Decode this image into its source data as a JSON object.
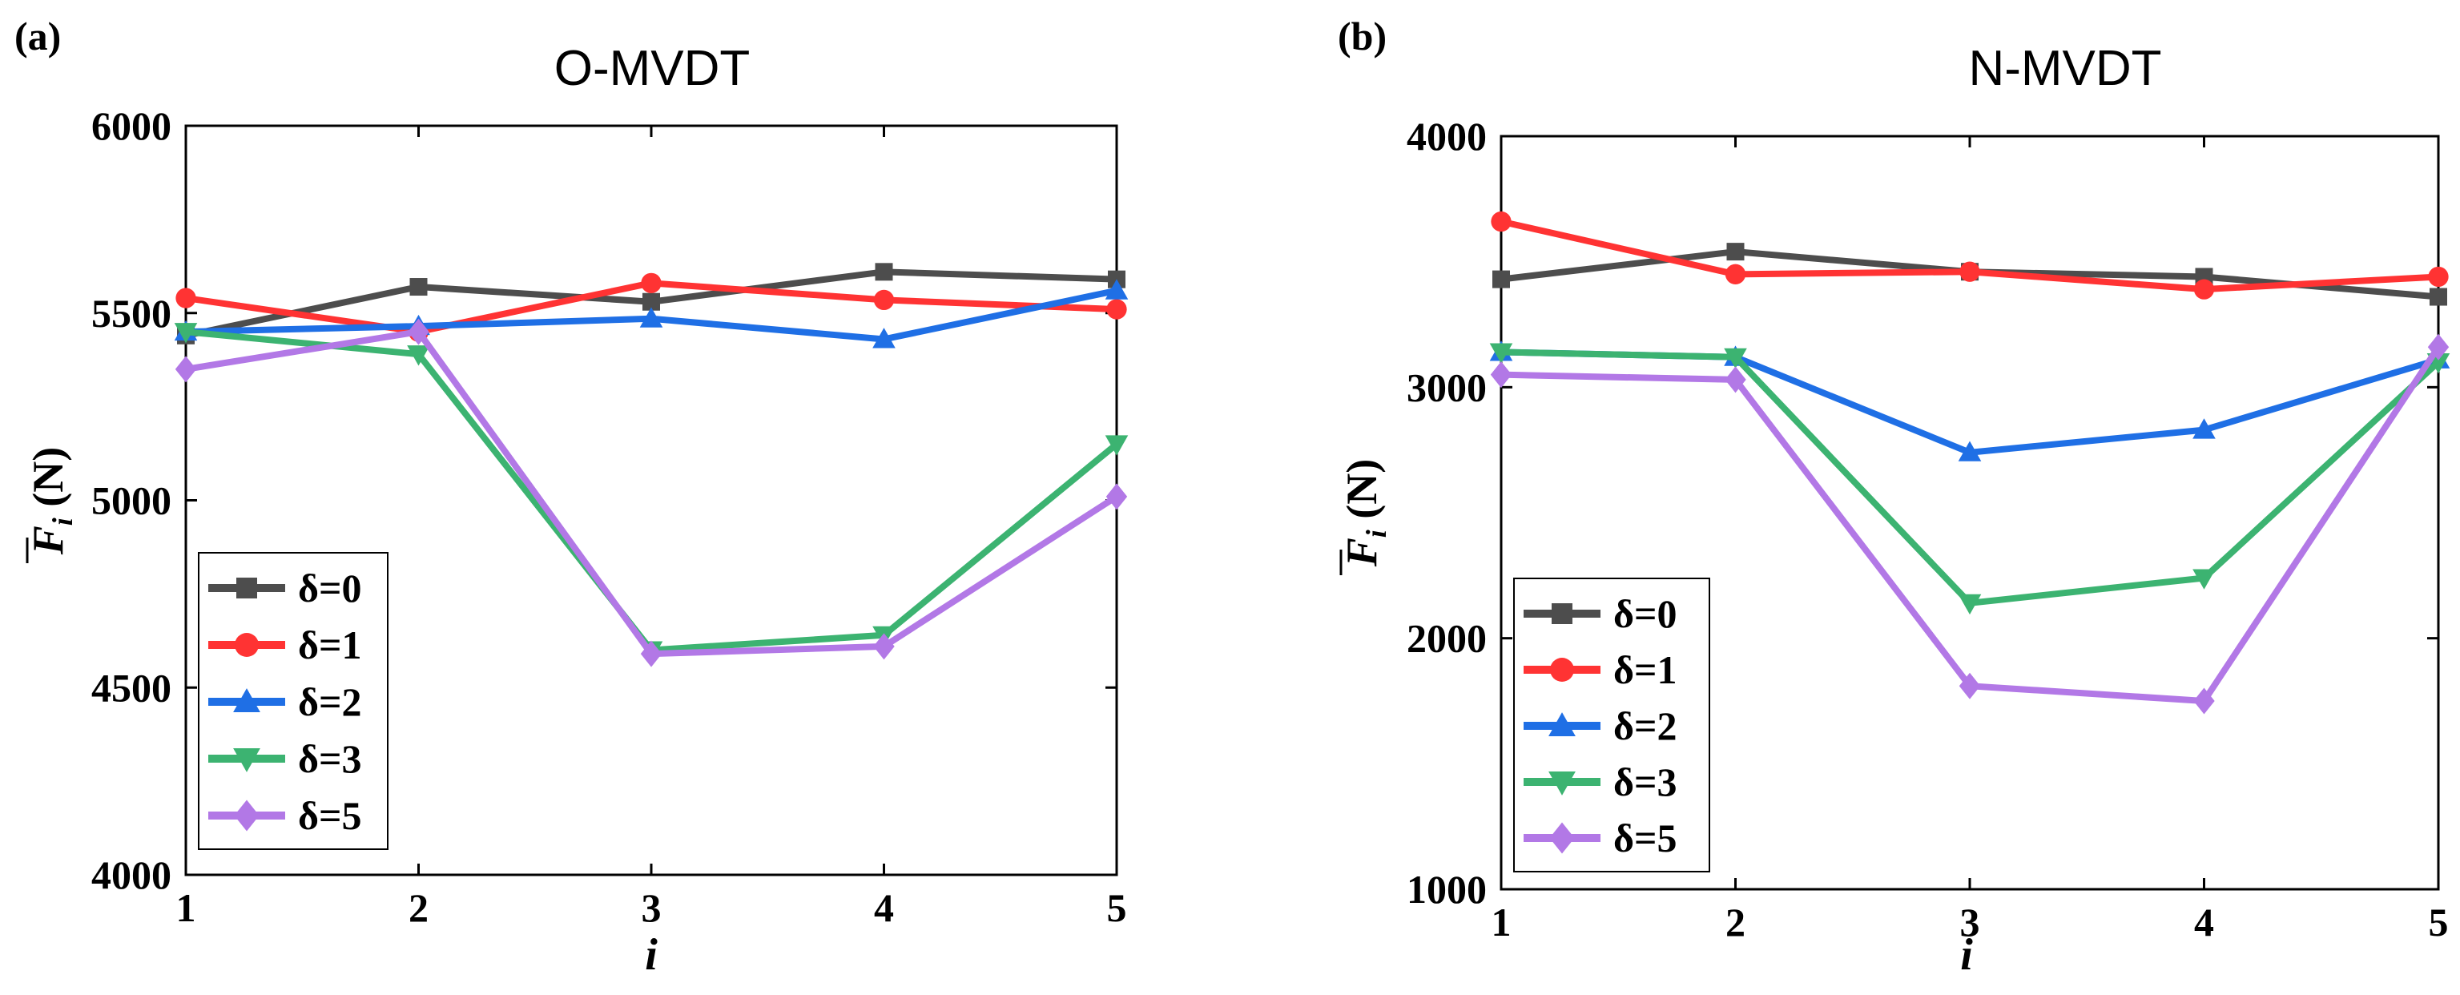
{
  "chart_data": [
    {
      "type": "line",
      "panel_label": "(a)",
      "title": "O-MVDT",
      "xlabel": "i",
      "ylabel_symbol": "F",
      "ylabel_subscript": "i",
      "ylabel_unit": " (N)",
      "x": [
        1,
        2,
        3,
        4,
        5
      ],
      "x_ticks": [
        "1",
        "2",
        "3",
        "4",
        "5"
      ],
      "ylim": [
        4000,
        6000
      ],
      "y_ticks": [
        "4000",
        "4500",
        "5000",
        "5500",
        "6000"
      ],
      "legend_position": "lower-left",
      "series": [
        {
          "name": "δ=0",
          "color": "#4d4d4d",
          "marker": "square",
          "values": [
            5440,
            5570,
            5530,
            5610,
            5590
          ]
        },
        {
          "name": "δ=1",
          "color": "#ff3333",
          "marker": "circle",
          "values": [
            5540,
            5450,
            5580,
            5535,
            5510
          ]
        },
        {
          "name": "δ=2",
          "color": "#1f6fe5",
          "marker": "triangle-up",
          "values": [
            5450,
            5465,
            5485,
            5430,
            5560
          ]
        },
        {
          "name": "δ=3",
          "color": "#3cb371",
          "marker": "triangle-down",
          "values": [
            5450,
            5390,
            4600,
            4640,
            5150
          ]
        },
        {
          "name": "δ=5",
          "color": "#b278e6",
          "marker": "diamond",
          "values": [
            5350,
            5450,
            4590,
            4610,
            5010
          ]
        }
      ]
    },
    {
      "type": "line",
      "panel_label": "(b)",
      "title": "N-MVDT",
      "xlabel": "i",
      "ylabel_symbol": "F",
      "ylabel_subscript": "i",
      "ylabel_unit": " (N)",
      "x": [
        1,
        2,
        3,
        4,
        5
      ],
      "x_ticks": [
        "1",
        "2",
        "3",
        "4",
        "5"
      ],
      "ylim": [
        1000,
        4000
      ],
      "y_ticks": [
        "1000",
        "2000",
        "3000",
        "4000"
      ],
      "legend_position": "lower-left",
      "series": [
        {
          "name": "δ=0",
          "color": "#4d4d4d",
          "marker": "square",
          "values": [
            3430,
            3540,
            3460,
            3440,
            3360
          ]
        },
        {
          "name": "δ=1",
          "color": "#ff3333",
          "marker": "circle",
          "values": [
            3660,
            3450,
            3460,
            3390,
            3440
          ]
        },
        {
          "name": "δ=2",
          "color": "#1f6fe5",
          "marker": "triangle-up",
          "values": [
            3140,
            3120,
            2740,
            2830,
            3110
          ]
        },
        {
          "name": "δ=3",
          "color": "#3cb371",
          "marker": "triangle-down",
          "values": [
            3140,
            3120,
            2140,
            2240,
            3100
          ]
        },
        {
          "name": "δ=5",
          "color": "#b278e6",
          "marker": "diamond",
          "values": [
            3050,
            3030,
            1810,
            1750,
            3160
          ]
        }
      ]
    }
  ]
}
